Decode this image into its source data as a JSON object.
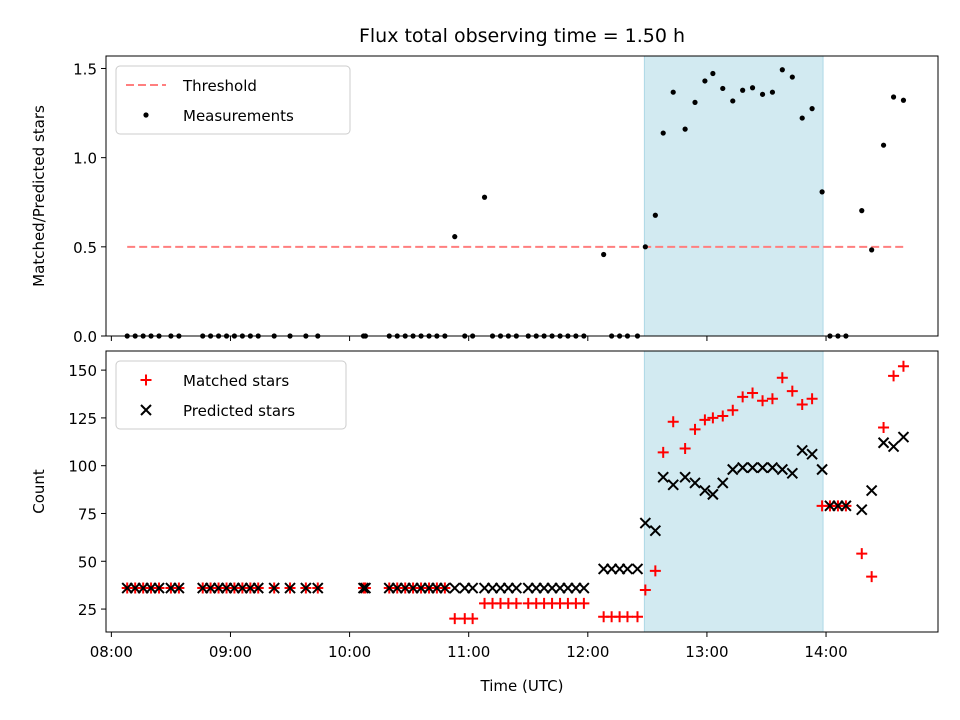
{
  "chart_data": {
    "type": "scatter",
    "title": "Flux total observing time = 1.50 h",
    "xlabel": "Time (UTC)",
    "x_unit": "hours UTC (decimal)",
    "xlim": [
      7.955,
      14.94
    ],
    "xticks": [
      {
        "value": 8.0,
        "label": "08:00"
      },
      {
        "value": 9.0,
        "label": "09:00"
      },
      {
        "value": 10.0,
        "label": "10:00"
      },
      {
        "value": 11.0,
        "label": "11:00"
      },
      {
        "value": 12.0,
        "label": "12:00"
      },
      {
        "value": 13.0,
        "label": "13:00"
      },
      {
        "value": 14.0,
        "label": "14:00"
      }
    ],
    "highlight": {
      "x_start": 12.475,
      "x_end": 13.975,
      "color": "#add8e6"
    },
    "x": [
      8.133,
      8.2,
      8.267,
      8.333,
      8.4,
      8.5,
      8.567,
      8.767,
      8.833,
      8.9,
      8.967,
      9.033,
      9.1,
      9.167,
      9.233,
      9.367,
      9.5,
      9.633,
      9.733,
      10.117,
      10.133,
      10.333,
      10.4,
      10.467,
      10.533,
      10.6,
      10.667,
      10.733,
      10.8,
      10.883,
      10.967,
      11.033,
      11.133,
      11.2,
      11.267,
      11.333,
      11.4,
      11.5,
      11.567,
      11.633,
      11.7,
      11.767,
      11.833,
      11.9,
      11.967,
      12.133,
      12.2,
      12.267,
      12.333,
      12.417,
      12.483,
      12.567,
      12.633,
      12.717,
      12.817,
      12.9,
      12.983,
      13.05,
      13.133,
      13.217,
      13.3,
      13.383,
      13.467,
      13.55,
      13.633,
      13.717,
      13.8,
      13.883,
      13.967,
      14.033,
      14.1,
      14.167,
      14.3,
      14.383,
      14.483,
      14.567,
      14.65
    ],
    "panels": [
      {
        "ylabel": "Matched/Predicted stars",
        "ylim": [
          0,
          1.57
        ],
        "yticks": [
          0.0,
          0.5,
          1.0,
          1.5
        ],
        "ytick_labels": [
          "0.0",
          "0.5",
          "1.0",
          "1.5"
        ],
        "legend_position": "top-left",
        "threshold": {
          "label": "Threshold",
          "value": 0.5,
          "x_start": 8.133,
          "x_end": 14.65,
          "color": "#ff7f7f"
        },
        "series": [
          {
            "name": "Measurements",
            "marker": "dot",
            "color": "#000000",
            "values": [
              0,
              0,
              0,
              0,
              0,
              0,
              0,
              0,
              0,
              0,
              0,
              0,
              0,
              0,
              0,
              0,
              0,
              0,
              0,
              0,
              0,
              0,
              0,
              0,
              0,
              0,
              0,
              0,
              0,
              0.557,
              0,
              0,
              0.778,
              0,
              0,
              0,
              0,
              0,
              0,
              0,
              0,
              0,
              0,
              0,
              0,
              0.457,
              0,
              0,
              0,
              0,
              0.5,
              0.677,
              1.138,
              1.367,
              1.16,
              1.31,
              1.43,
              1.472,
              1.388,
              1.318,
              1.378,
              1.392,
              1.355,
              1.367,
              1.493,
              1.452,
              1.222,
              1.275,
              0.808,
              0,
              0,
              0,
              0.703,
              0.483,
              1.07,
              1.34,
              1.322
            ]
          }
        ]
      },
      {
        "ylabel": "Count",
        "ylim": [
          13,
          160
        ],
        "yticks": [
          25,
          50,
          75,
          100,
          125,
          150
        ],
        "ytick_labels": [
          "25",
          "50",
          "75",
          "100",
          "125",
          "150"
        ],
        "legend_position": "top-left",
        "series": [
          {
            "name": "Matched stars",
            "marker": "plus",
            "color": "#ff0000",
            "values": [
              36,
              36,
              36,
              36,
              36,
              36,
              36,
              36,
              36,
              36,
              36,
              36,
              36,
              36,
              36,
              36,
              36,
              36,
              36,
              36,
              36,
              36,
              36,
              36,
              36,
              36,
              36,
              36,
              36,
              20,
              20,
              20,
              28,
              28,
              28,
              28,
              28,
              28,
              28,
              28,
              28,
              28,
              28,
              28,
              28,
              21,
              21,
              21,
              21,
              21,
              35,
              45,
              107,
              123,
              109,
              119,
              124,
              125,
              126,
              129,
              136,
              138,
              134,
              135,
              146,
              139,
              132,
              135,
              79,
              79,
              79,
              79,
              54,
              42,
              120,
              147,
              152
            ]
          },
          {
            "name": "Predicted stars",
            "marker": "x",
            "color": "#000000",
            "values": [
              36,
              36,
              36,
              36,
              36,
              36,
              36,
              36,
              36,
              36,
              36,
              36,
              36,
              36,
              36,
              36,
              36,
              36,
              36,
              36,
              36,
              36,
              36,
              36,
              36,
              36,
              36,
              36,
              36,
              36,
              36,
              36,
              36,
              36,
              36,
              36,
              36,
              36,
              36,
              36,
              36,
              36,
              36,
              36,
              36,
              46,
              46,
              46,
              46,
              46,
              70,
              66,
              94,
              90,
              94,
              91,
              87,
              85,
              91,
              98,
              99,
              99,
              99,
              99,
              98,
              96,
              108,
              106,
              98,
              79,
              79,
              79,
              77,
              87,
              112,
              110,
              115
            ]
          }
        ]
      }
    ]
  }
}
